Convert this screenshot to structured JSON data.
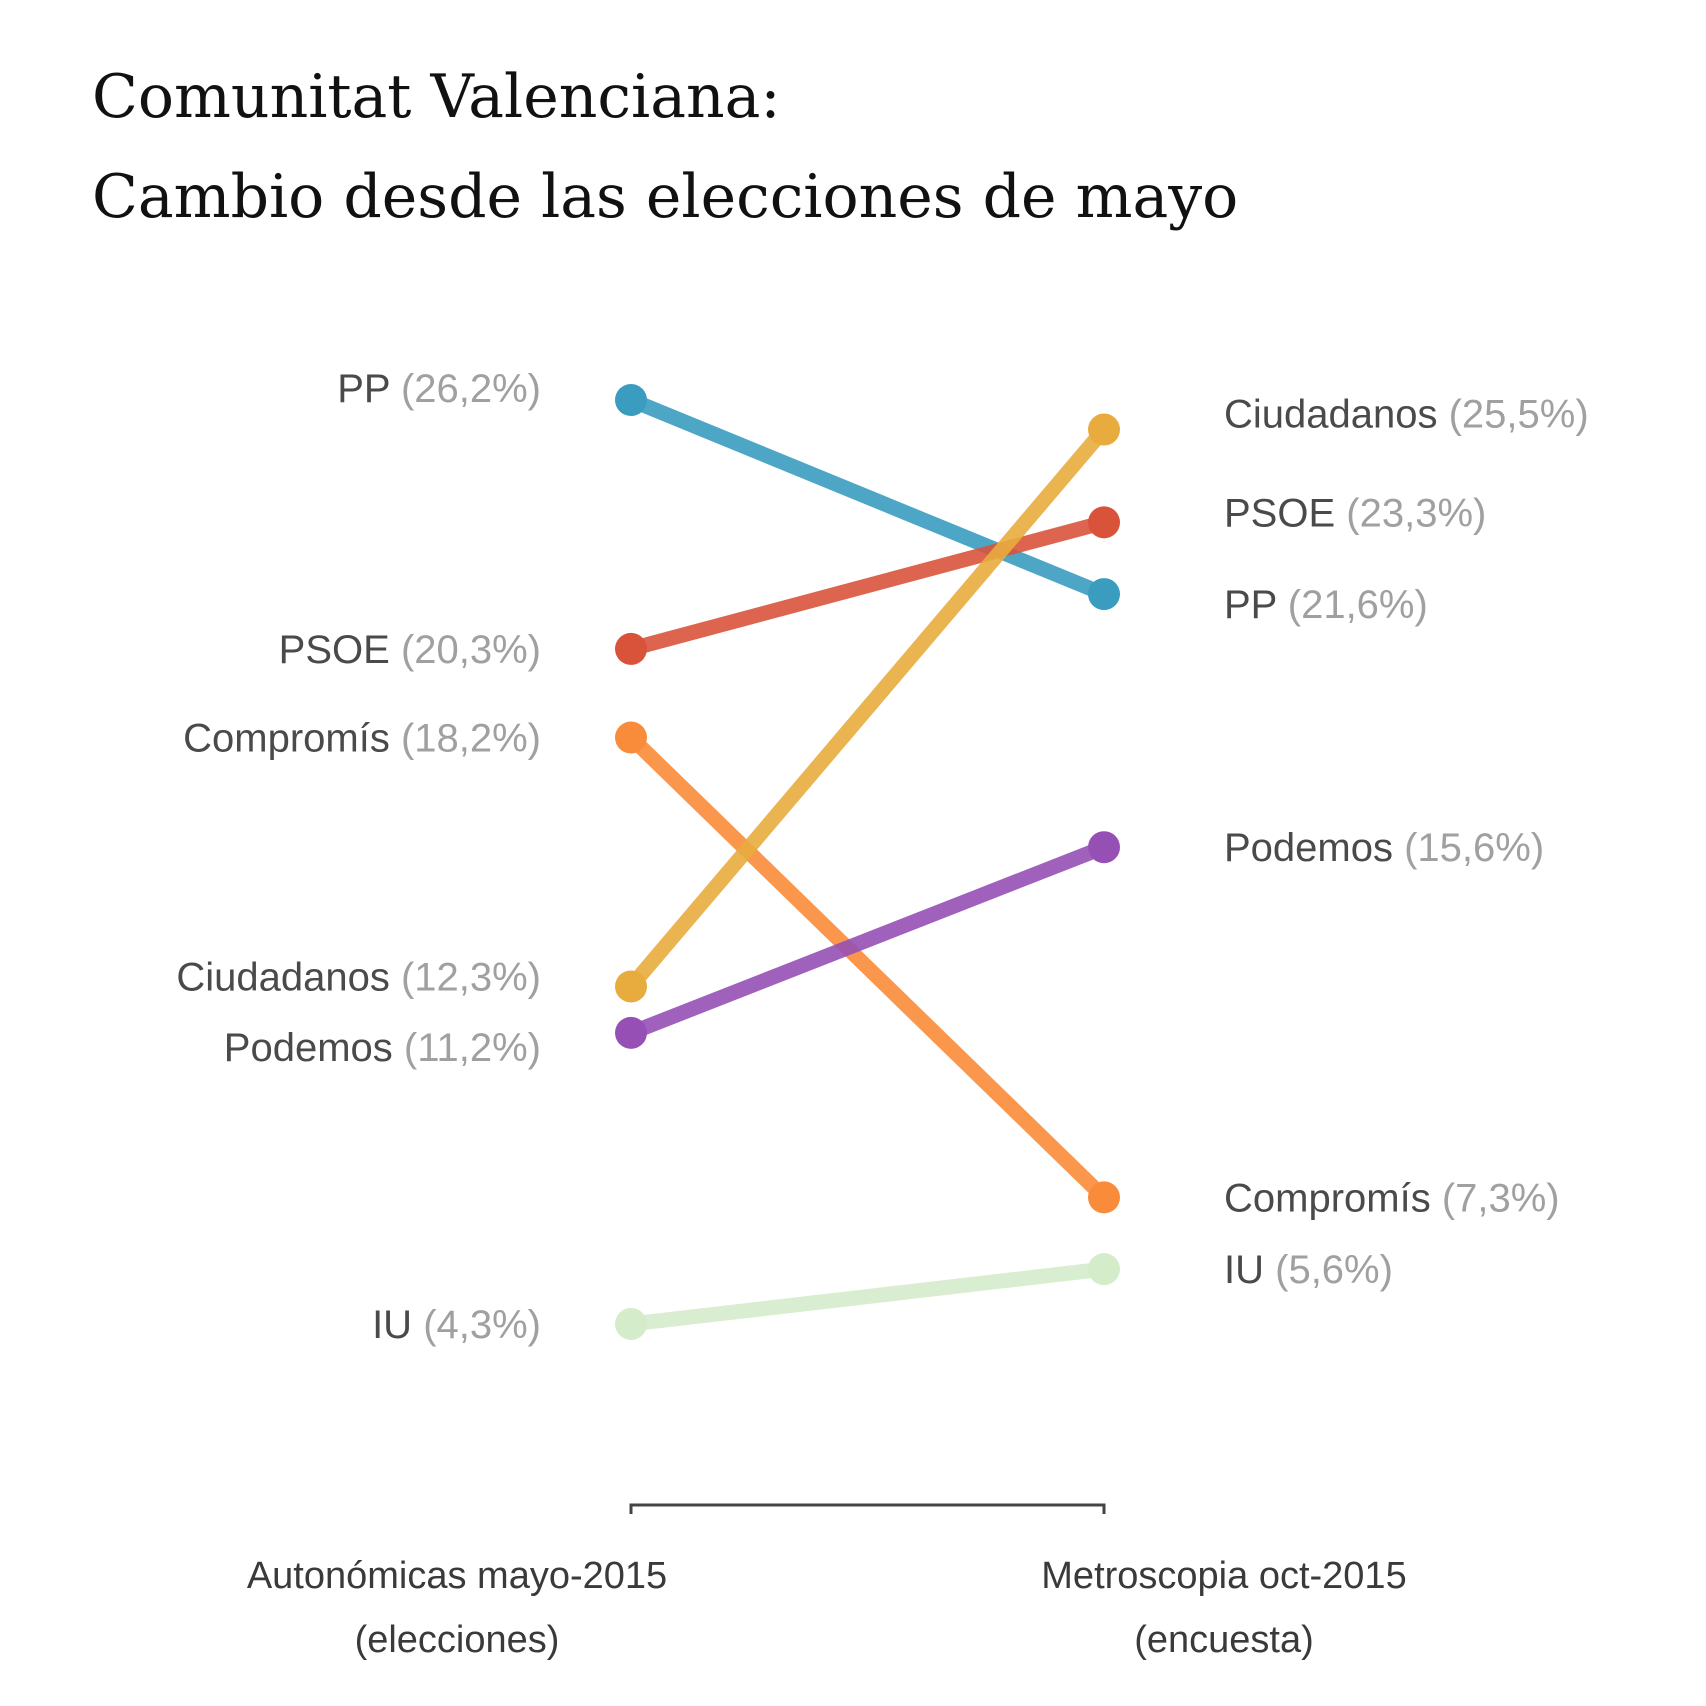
{
  "chart_data": {
    "type": "line",
    "subtype": "slope",
    "title": [
      "Comunitat Valenciana:",
      "Cambio desde las elecciones de mayo"
    ],
    "x": [
      {
        "line1": "Autonómicas mayo-2015",
        "line2": "(elecciones)"
      },
      {
        "line1": "Metroscopia oct-2015",
        "line2": "(encuesta)"
      }
    ],
    "series": [
      {
        "name": "PP",
        "values": [
          26.2,
          21.6
        ],
        "labels": [
          "(26,2%)",
          "(21,6%)"
        ],
        "color": "#3a9cbf"
      },
      {
        "name": "PSOE",
        "values": [
          20.3,
          23.3
        ],
        "labels": [
          "(20,3%)",
          "(23,3%)"
        ],
        "color": "#d9533b"
      },
      {
        "name": "Compromís",
        "values": [
          18.2,
          7.3
        ],
        "labels": [
          "(18,2%)",
          "(7,3%)"
        ],
        "color": "#f98c3a"
      },
      {
        "name": "Ciudadanos",
        "values": [
          12.3,
          25.5
        ],
        "labels": [
          "(12,3%)",
          "(25,5%)"
        ],
        "color": "#e8ac3e"
      },
      {
        "name": "Podemos",
        "values": [
          11.2,
          15.6
        ],
        "labels": [
          "(11,2%)",
          "(15,6%)"
        ],
        "color": "#9650b5"
      },
      {
        "name": "IU",
        "values": [
          4.3,
          5.6
        ],
        "labels": [
          "(4,3%)",
          "(5,6%)"
        ],
        "color": "#d5eccb"
      }
    ],
    "grid": false,
    "legend": "none"
  }
}
